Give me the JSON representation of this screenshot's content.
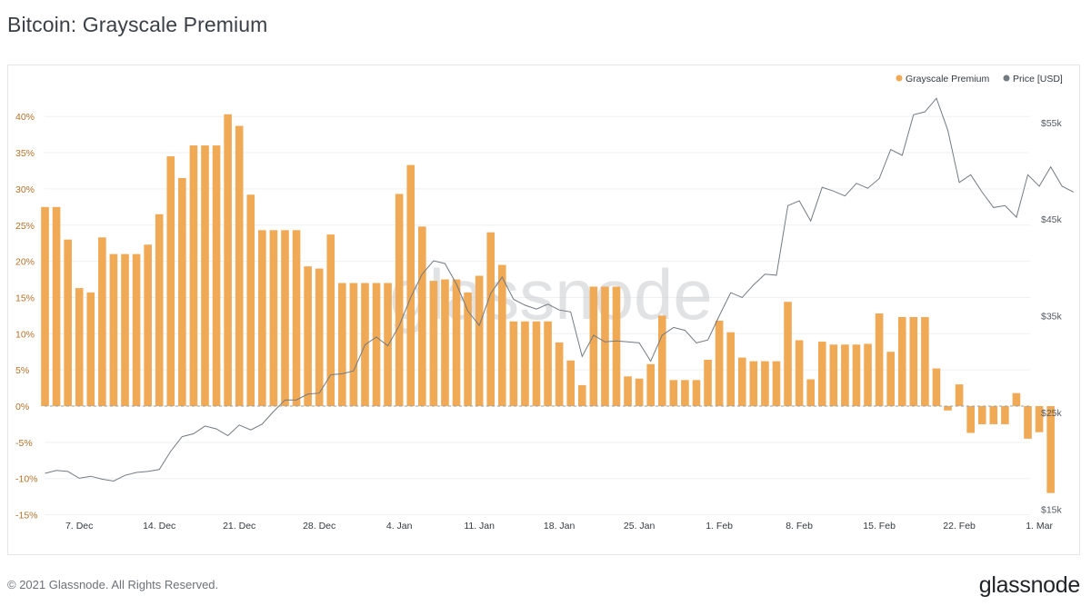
{
  "page": {
    "title": "Bitcoin: Grayscale Premium",
    "copyright": "© 2021 Glassnode. All Rights Reserved.",
    "brand": "glassnode",
    "watermark": "glassnode"
  },
  "colors": {
    "premium": "#f0a955",
    "price": "#737a80",
    "grid": "#eef0f2",
    "axis_left": "#b5722a"
  },
  "chart_data": {
    "type": "bar",
    "title": "Bitcoin: Grayscale Premium",
    "legend_position": "top-right",
    "grid": true,
    "y_left": {
      "range": [
        -15,
        45
      ],
      "unit": "%",
      "ticks": [
        -15,
        -10,
        -5,
        0,
        5,
        10,
        15,
        20,
        25,
        30,
        35,
        40
      ],
      "tick_labels": [
        "-15%",
        "-10%",
        "-5%",
        "0%",
        "5%",
        "10%",
        "15%",
        "20%",
        "25%",
        "30%",
        "35%",
        "40%"
      ]
    },
    "y_right": {
      "range": [
        15000,
        61000
      ],
      "ticks": [
        15000,
        25000,
        35000,
        45000,
        55000
      ],
      "tick_labels": [
        "$15k",
        "$25k",
        "$35k",
        "$45k",
        "$55k"
      ]
    },
    "x_tick_labels": [
      "7. Dec",
      "14. Dec",
      "21. Dec",
      "28. Dec",
      "4. Jan",
      "11. Jan",
      "18. Jan",
      "25. Jan",
      "1. Feb",
      "8. Feb",
      "15. Feb",
      "22. Feb",
      "1. Mar"
    ],
    "x_tick_dates": [
      "2020-12-07",
      "2020-12-14",
      "2020-12-21",
      "2020-12-28",
      "2021-01-04",
      "2021-01-11",
      "2021-01-18",
      "2021-01-25",
      "2021-02-01",
      "2021-02-08",
      "2021-02-15",
      "2021-02-22",
      "2021-03-01"
    ],
    "series": [
      {
        "name": "Grayscale Premium",
        "type": "bar",
        "axis": "left",
        "start_date": "2020-12-04",
        "values": [
          27.5,
          27.5,
          23,
          16.3,
          15.7,
          23.3,
          21,
          21,
          21,
          22.3,
          26.5,
          34.5,
          31.5,
          36,
          36,
          36,
          40.3,
          38.7,
          29.2,
          24.3,
          24.3,
          24.3,
          24.3,
          19.3,
          19,
          23.7,
          17,
          17,
          17,
          17,
          17,
          29.3,
          33.3,
          24.8,
          17.3,
          17.5,
          17.5,
          15.7,
          18,
          24,
          19.5,
          11.7,
          11.7,
          11.7,
          11.7,
          8.8,
          6.3,
          2.9,
          16.5,
          16.5,
          16.5,
          4.1,
          3.8,
          5.8,
          12.5,
          3.6,
          3.6,
          3.6,
          6.4,
          11.8,
          10.2,
          6.7,
          6.2,
          6.2,
          6.2,
          14.4,
          9.1,
          3.7,
          8.9,
          8.5,
          8.5,
          8.5,
          8.6,
          12.8,
          7.5,
          12.3,
          12.3,
          12.3,
          5.2,
          -0.6,
          3,
          -3.7,
          -2.5,
          -2.5,
          -2.5,
          1.8,
          -4.5,
          -3.6,
          -12
        ]
      },
      {
        "name": "Price [USD]",
        "type": "line",
        "axis": "right",
        "start_date": "2020-12-04",
        "values": [
          18700,
          19000,
          18900,
          18200,
          18400,
          18100,
          17900,
          18500,
          18800,
          18900,
          19100,
          21000,
          22500,
          22800,
          23600,
          23300,
          22600,
          23700,
          23200,
          23800,
          25100,
          26300,
          26300,
          26900,
          27000,
          28900,
          29000,
          29300,
          32000,
          32800,
          31900,
          34000,
          36900,
          39300,
          40700,
          40400,
          38300,
          35500,
          34000,
          37300,
          39000,
          36700,
          36100,
          35700,
          36200,
          35600,
          35400,
          30800,
          33000,
          32300,
          32400,
          32300,
          32200,
          30300,
          33000,
          33800,
          33500,
          32200,
          32500,
          35000,
          37400,
          36900,
          38200,
          39300,
          39200,
          46400,
          46900,
          44800,
          48300,
          47900,
          47400,
          48700,
          48200,
          49200,
          52200,
          51600,
          55800,
          56100,
          57500,
          54200,
          48800,
          49600,
          47800,
          46200,
          46400,
          45200,
          49600,
          48400,
          50400,
          48400,
          47800
        ]
      }
    ]
  }
}
